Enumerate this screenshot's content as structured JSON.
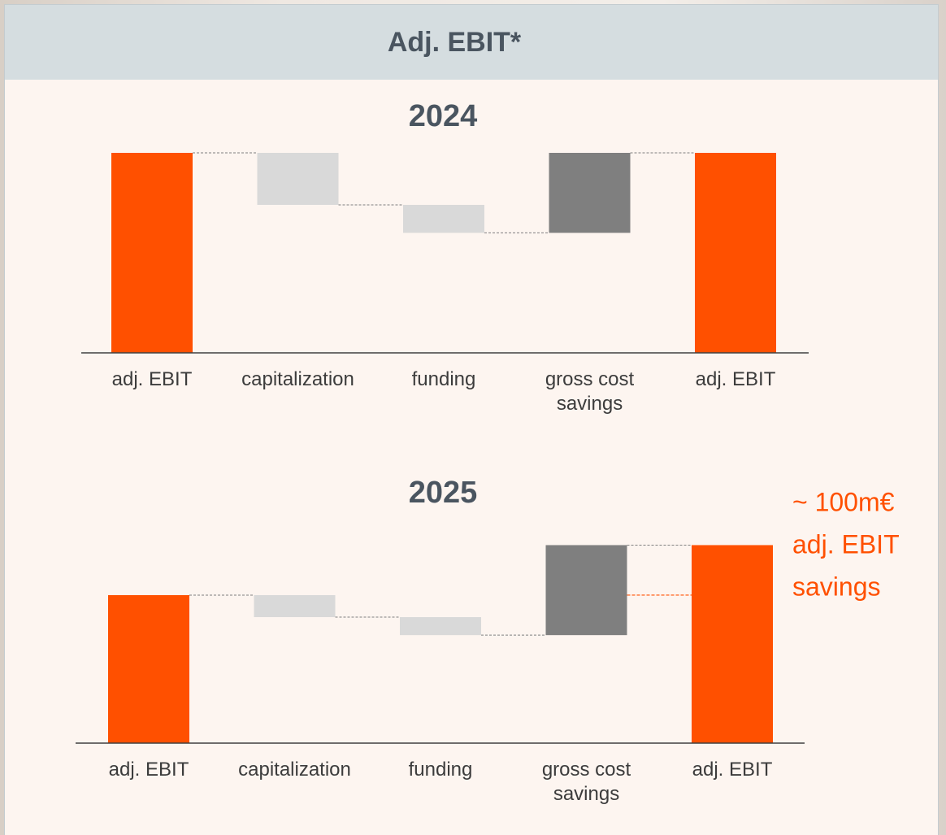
{
  "header": {
    "title": "Adj. EBIT*"
  },
  "chart_data": [
    {
      "type": "waterfall",
      "title": "2024",
      "categories": [
        "adj. EBIT",
        "capitalization",
        "funding",
        "gross cost savings",
        "adj. EBIT"
      ],
      "values": [
        100,
        -26,
        -14,
        40,
        100
      ],
      "measure": [
        "absolute",
        "relative",
        "relative",
        "relative",
        "total"
      ],
      "colors": [
        "#ff5000",
        "#d9d9d9",
        "#d9d9d9",
        "#7f7f7f",
        "#ff5000"
      ],
      "ylim": [
        0,
        100
      ]
    },
    {
      "type": "waterfall",
      "title": "2025",
      "categories": [
        "adj. EBIT",
        "capitalization",
        "funding",
        "gross cost savings",
        "adj. EBIT"
      ],
      "values": [
        74,
        -11,
        -9,
        45,
        99
      ],
      "measure": [
        "absolute",
        "relative",
        "relative",
        "relative",
        "total"
      ],
      "colors": [
        "#ff5000",
        "#d9d9d9",
        "#d9d9d9",
        "#7f7f7f",
        "#ff5000"
      ],
      "ylim": [
        0,
        100
      ],
      "annotation": [
        "~ 100m€",
        "adj. EBIT",
        "savings"
      ],
      "annotation_color": "#ff5000"
    }
  ]
}
